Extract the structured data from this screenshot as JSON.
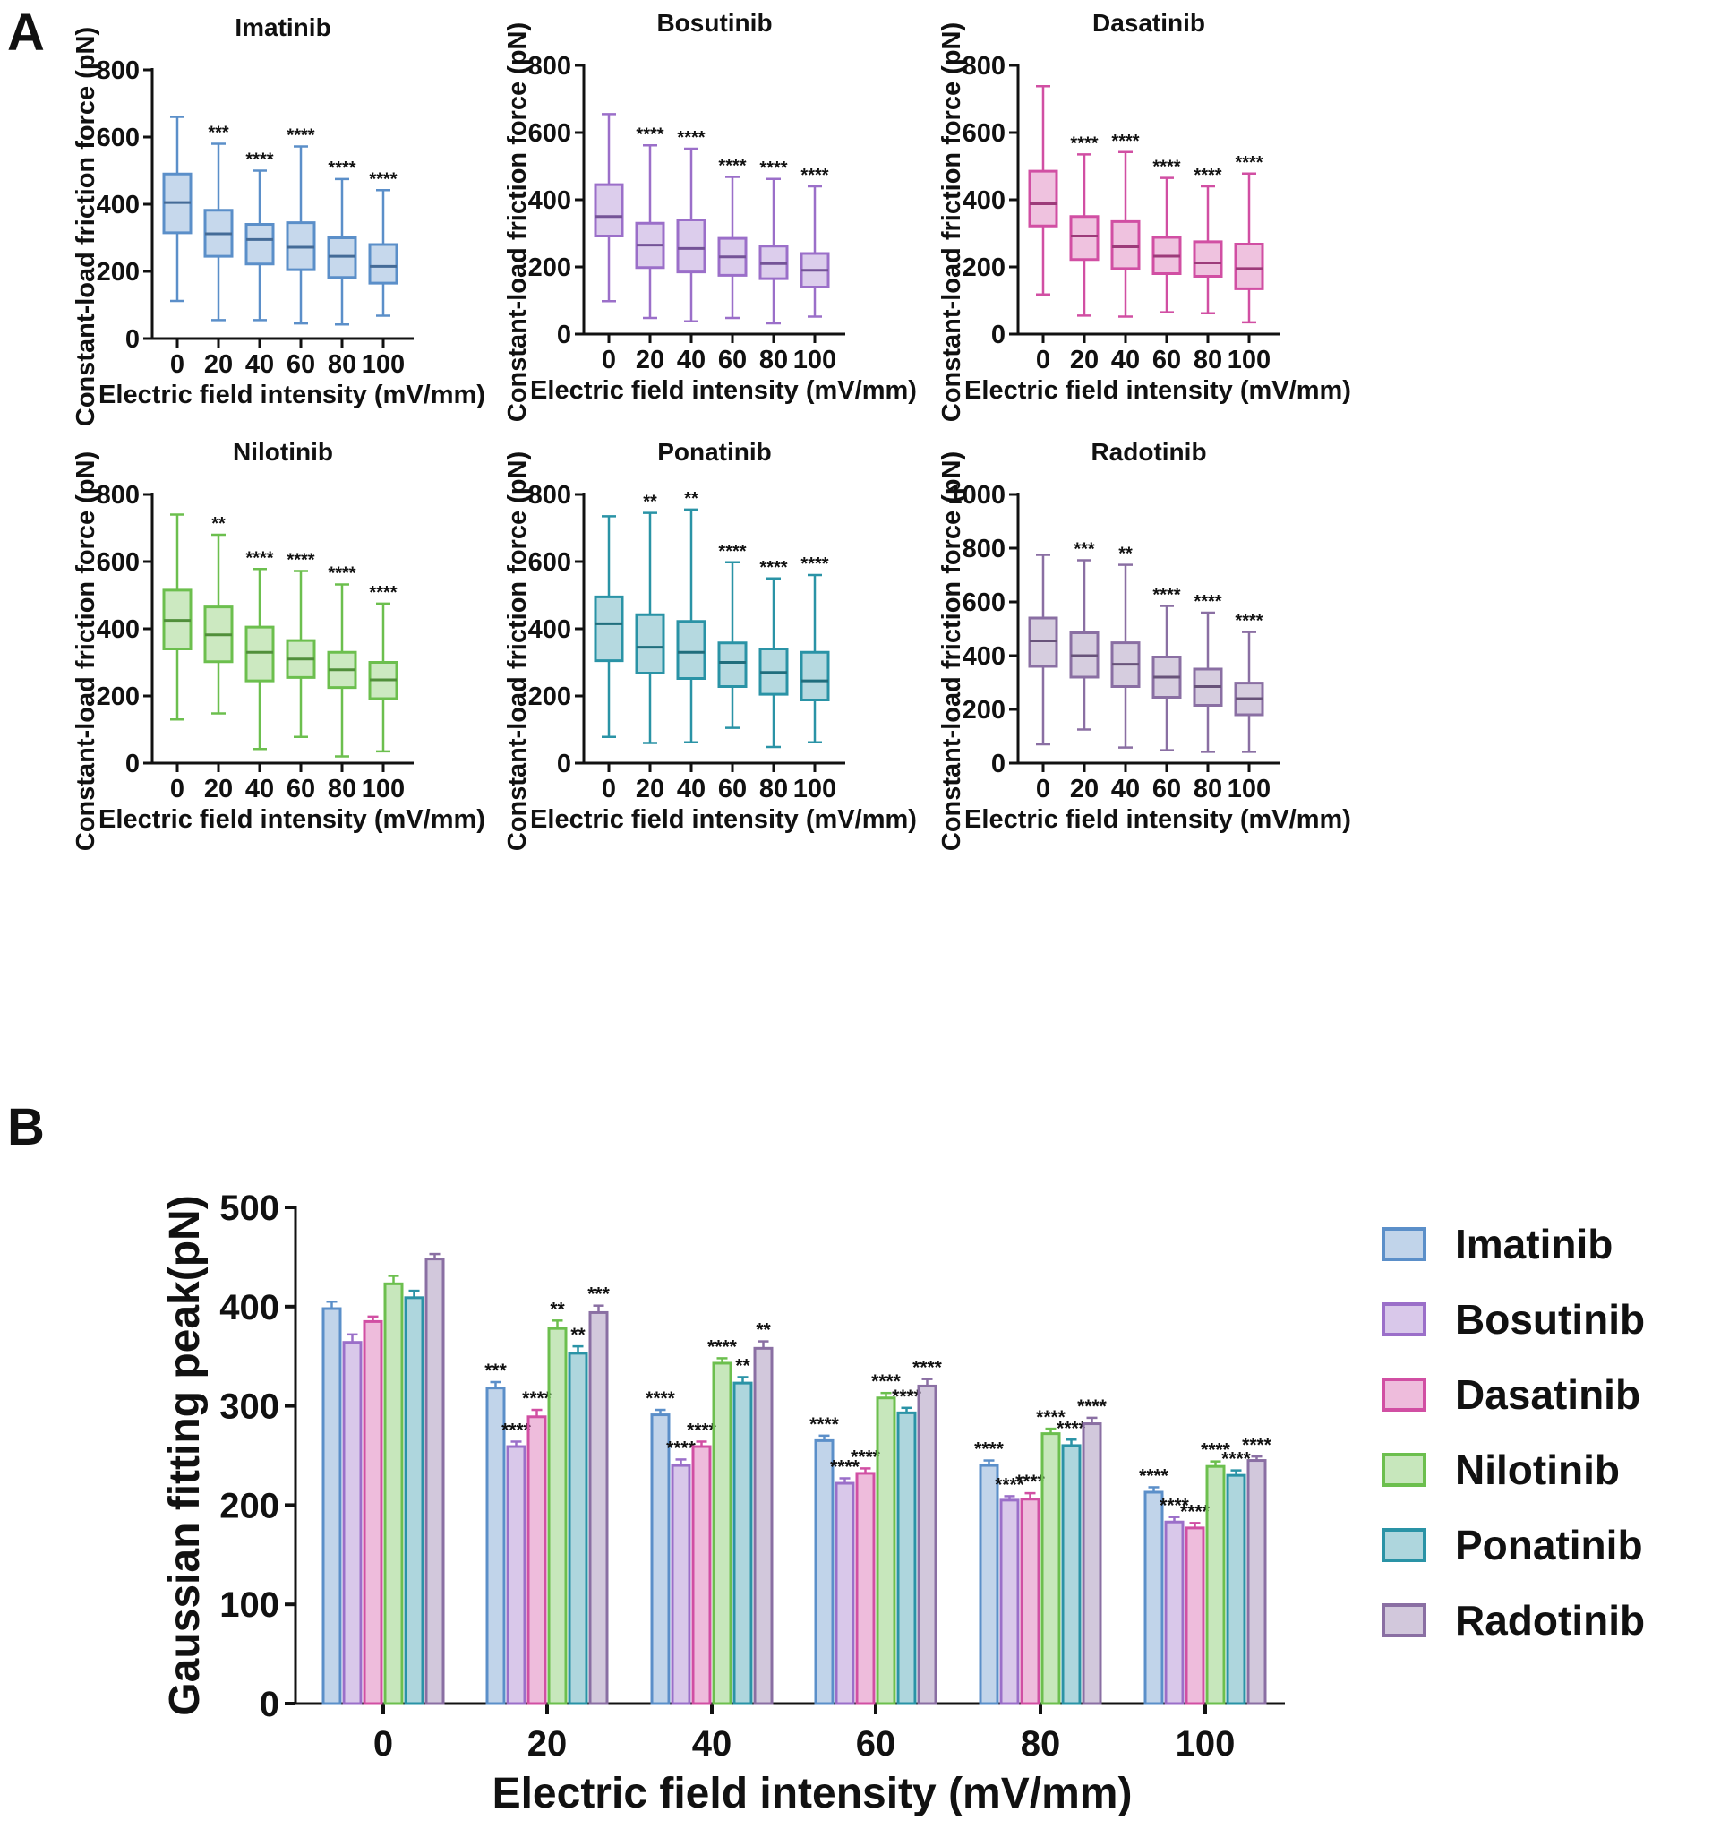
{
  "panel_labels": {
    "a": "A",
    "b": "B"
  },
  "chart_data": [
    {
      "type": "box",
      "title": "Imatinib",
      "categories": [
        "0",
        "20",
        "40",
        "60",
        "80",
        "100"
      ],
      "xlabel": "Electric field intensity (mV/mm)",
      "ylabel": "Constant-load friction force (pN)",
      "ylim": [
        0,
        800
      ],
      "yticks": [
        0,
        200,
        400,
        600,
        800
      ],
      "color": "#5b8fc9",
      "series": [
        {
          "min": 112,
          "q1": 315,
          "median": 405,
          "q3": 490,
          "max": 660,
          "sig": ""
        },
        {
          "min": 55,
          "q1": 245,
          "median": 312,
          "q3": 382,
          "max": 580,
          "sig": "***"
        },
        {
          "min": 55,
          "q1": 222,
          "median": 295,
          "q3": 340,
          "max": 500,
          "sig": "****"
        },
        {
          "min": 45,
          "q1": 205,
          "median": 272,
          "q3": 345,
          "max": 572,
          "sig": "****"
        },
        {
          "min": 42,
          "q1": 182,
          "median": 245,
          "q3": 300,
          "max": 475,
          "sig": "****"
        },
        {
          "min": 68,
          "q1": 165,
          "median": 215,
          "q3": 280,
          "max": 442,
          "sig": "****"
        }
      ]
    },
    {
      "type": "box",
      "title": "Bosutinib",
      "categories": [
        "0",
        "20",
        "40",
        "60",
        "80",
        "100"
      ],
      "xlabel": "Electric field intensity (mV/mm)",
      "ylabel": "Constant-load friction force (pN)",
      "ylim": [
        0,
        800
      ],
      "yticks": [
        0,
        200,
        400,
        600,
        800
      ],
      "color": "#9b6fc9",
      "series": [
        {
          "min": 98,
          "q1": 292,
          "median": 350,
          "q3": 445,
          "max": 655,
          "sig": ""
        },
        {
          "min": 48,
          "q1": 198,
          "median": 265,
          "q3": 330,
          "max": 562,
          "sig": "****"
        },
        {
          "min": 38,
          "q1": 185,
          "median": 255,
          "q3": 340,
          "max": 552,
          "sig": "****"
        },
        {
          "min": 48,
          "q1": 175,
          "median": 230,
          "q3": 285,
          "max": 468,
          "sig": "****"
        },
        {
          "min": 32,
          "q1": 165,
          "median": 210,
          "q3": 262,
          "max": 462,
          "sig": "****"
        },
        {
          "min": 52,
          "q1": 140,
          "median": 190,
          "q3": 240,
          "max": 440,
          "sig": "****"
        }
      ]
    },
    {
      "type": "box",
      "title": "Dasatinib",
      "categories": [
        "0",
        "20",
        "40",
        "60",
        "80",
        "100"
      ],
      "xlabel": "Electric field intensity (mV/mm)",
      "ylabel": "Constant-load friction force (pN)",
      "ylim": [
        0,
        800
      ],
      "yticks": [
        0,
        200,
        400,
        600,
        800
      ],
      "color": "#d14fa3",
      "series": [
        {
          "min": 118,
          "q1": 322,
          "median": 388,
          "q3": 485,
          "max": 738,
          "sig": ""
        },
        {
          "min": 55,
          "q1": 222,
          "median": 292,
          "q3": 350,
          "max": 535,
          "sig": "****"
        },
        {
          "min": 52,
          "q1": 195,
          "median": 260,
          "q3": 335,
          "max": 542,
          "sig": "****"
        },
        {
          "min": 65,
          "q1": 180,
          "median": 232,
          "q3": 288,
          "max": 465,
          "sig": "****"
        },
        {
          "min": 62,
          "q1": 172,
          "median": 212,
          "q3": 275,
          "max": 440,
          "sig": "****"
        },
        {
          "min": 35,
          "q1": 135,
          "median": 195,
          "q3": 268,
          "max": 478,
          "sig": "****"
        }
      ]
    },
    {
      "type": "box",
      "title": "Nilotinib",
      "categories": [
        "0",
        "20",
        "40",
        "60",
        "80",
        "100"
      ],
      "xlabel": "Electric field intensity (mV/mm)",
      "ylabel": "Constant-load friction force (pN)",
      "ylim": [
        0,
        800
      ],
      "yticks": [
        0,
        200,
        400,
        600,
        800
      ],
      "color": "#6cbf4e",
      "series": [
        {
          "min": 130,
          "q1": 340,
          "median": 425,
          "q3": 515,
          "max": 740,
          "sig": ""
        },
        {
          "min": 148,
          "q1": 302,
          "median": 382,
          "q3": 465,
          "max": 680,
          "sig": "**"
        },
        {
          "min": 42,
          "q1": 245,
          "median": 330,
          "q3": 405,
          "max": 578,
          "sig": "****"
        },
        {
          "min": 78,
          "q1": 255,
          "median": 310,
          "q3": 365,
          "max": 572,
          "sig": "****"
        },
        {
          "min": 20,
          "q1": 225,
          "median": 278,
          "q3": 330,
          "max": 532,
          "sig": "****"
        },
        {
          "min": 35,
          "q1": 192,
          "median": 248,
          "q3": 300,
          "max": 475,
          "sig": "****"
        }
      ]
    },
    {
      "type": "box",
      "title": "Ponatinib",
      "categories": [
        "0",
        "20",
        "40",
        "60",
        "80",
        "100"
      ],
      "xlabel": "Electric field intensity (mV/mm)",
      "ylabel": "Constant-load friction force (pN)",
      "ylim": [
        0,
        800
      ],
      "yticks": [
        0,
        200,
        400,
        600,
        800
      ],
      "color": "#2a93a6",
      "series": [
        {
          "min": 78,
          "q1": 305,
          "median": 415,
          "q3": 495,
          "max": 735,
          "sig": ""
        },
        {
          "min": 60,
          "q1": 268,
          "median": 345,
          "q3": 442,
          "max": 745,
          "sig": "**"
        },
        {
          "min": 62,
          "q1": 252,
          "median": 330,
          "q3": 422,
          "max": 755,
          "sig": "**"
        },
        {
          "min": 105,
          "q1": 228,
          "median": 300,
          "q3": 358,
          "max": 598,
          "sig": "****"
        },
        {
          "min": 48,
          "q1": 205,
          "median": 270,
          "q3": 340,
          "max": 550,
          "sig": "****"
        },
        {
          "min": 62,
          "q1": 188,
          "median": 245,
          "q3": 330,
          "max": 560,
          "sig": "****"
        }
      ]
    },
    {
      "type": "box",
      "title": "Radotinib",
      "categories": [
        "0",
        "20",
        "40",
        "60",
        "80",
        "100"
      ],
      "xlabel": "Electric field intensity (mV/mm)",
      "ylabel": "Constant-load friction force (pN)",
      "ylim": [
        0,
        1000
      ],
      "yticks": [
        0,
        200,
        400,
        600,
        800,
        1000
      ],
      "color": "#8a6fa3",
      "series": [
        {
          "min": 70,
          "q1": 360,
          "median": 455,
          "q3": 540,
          "max": 775,
          "sig": ""
        },
        {
          "min": 125,
          "q1": 320,
          "median": 400,
          "q3": 485,
          "max": 755,
          "sig": "***"
        },
        {
          "min": 58,
          "q1": 285,
          "median": 368,
          "q3": 448,
          "max": 738,
          "sig": "**"
        },
        {
          "min": 48,
          "q1": 245,
          "median": 320,
          "q3": 395,
          "max": 585,
          "sig": "****"
        },
        {
          "min": 42,
          "q1": 215,
          "median": 285,
          "q3": 350,
          "max": 560,
          "sig": "****"
        },
        {
          "min": 42,
          "q1": 180,
          "median": 240,
          "q3": 298,
          "max": 488,
          "sig": "****"
        }
      ]
    },
    {
      "type": "bar",
      "title": "",
      "categories": [
        "0",
        "20",
        "40",
        "60",
        "80",
        "100"
      ],
      "xlabel": "Electric field intensity (mV/mm)",
      "ylabel": "Gaussian fitting peak(pN)",
      "ylim": [
        0,
        500
      ],
      "yticks": [
        0,
        100,
        200,
        300,
        400,
        500
      ],
      "series": [
        {
          "name": "Imatinib",
          "color": "#5b8fc9",
          "values": [
            398,
            318,
            291,
            265,
            240,
            213
          ],
          "errors": [
            7,
            6,
            5,
            5,
            5,
            5
          ],
          "sig": [
            "",
            "***",
            "****",
            "****",
            "****",
            "****"
          ]
        },
        {
          "name": "Bosutinib",
          "color": "#9b6fc9",
          "values": [
            364,
            259,
            240,
            222,
            205,
            183
          ],
          "errors": [
            8,
            5,
            6,
            5,
            4,
            5
          ],
          "sig": [
            "",
            "****",
            "****",
            "****",
            "****",
            "****"
          ]
        },
        {
          "name": "Dasatinib",
          "color": "#d14fa3",
          "values": [
            385,
            289,
            259,
            232,
            206,
            177
          ],
          "errors": [
            5,
            7,
            5,
            5,
            6,
            5
          ],
          "sig": [
            "",
            "****",
            "****",
            "****",
            "****",
            "****"
          ]
        },
        {
          "name": "Nilotinib",
          "color": "#6cbf4e",
          "values": [
            423,
            378,
            343,
            308,
            272,
            239
          ],
          "errors": [
            8,
            8,
            5,
            5,
            5,
            5
          ],
          "sig": [
            "",
            "**",
            "****",
            "****",
            "****",
            "****"
          ]
        },
        {
          "name": "Ponatinib",
          "color": "#2a93a6",
          "values": [
            409,
            353,
            323,
            293,
            260,
            230
          ],
          "errors": [
            7,
            7,
            6,
            5,
            6,
            5
          ],
          "sig": [
            "",
            "**",
            "**",
            "****",
            "****",
            "****"
          ]
        },
        {
          "name": "Radotinib",
          "color": "#8a6fa3",
          "values": [
            448,
            394,
            358,
            320,
            282,
            245
          ],
          "errors": [
            5,
            7,
            7,
            7,
            6,
            4
          ],
          "sig": [
            "",
            "***",
            "**",
            "****",
            "****",
            "****"
          ]
        }
      ]
    }
  ]
}
